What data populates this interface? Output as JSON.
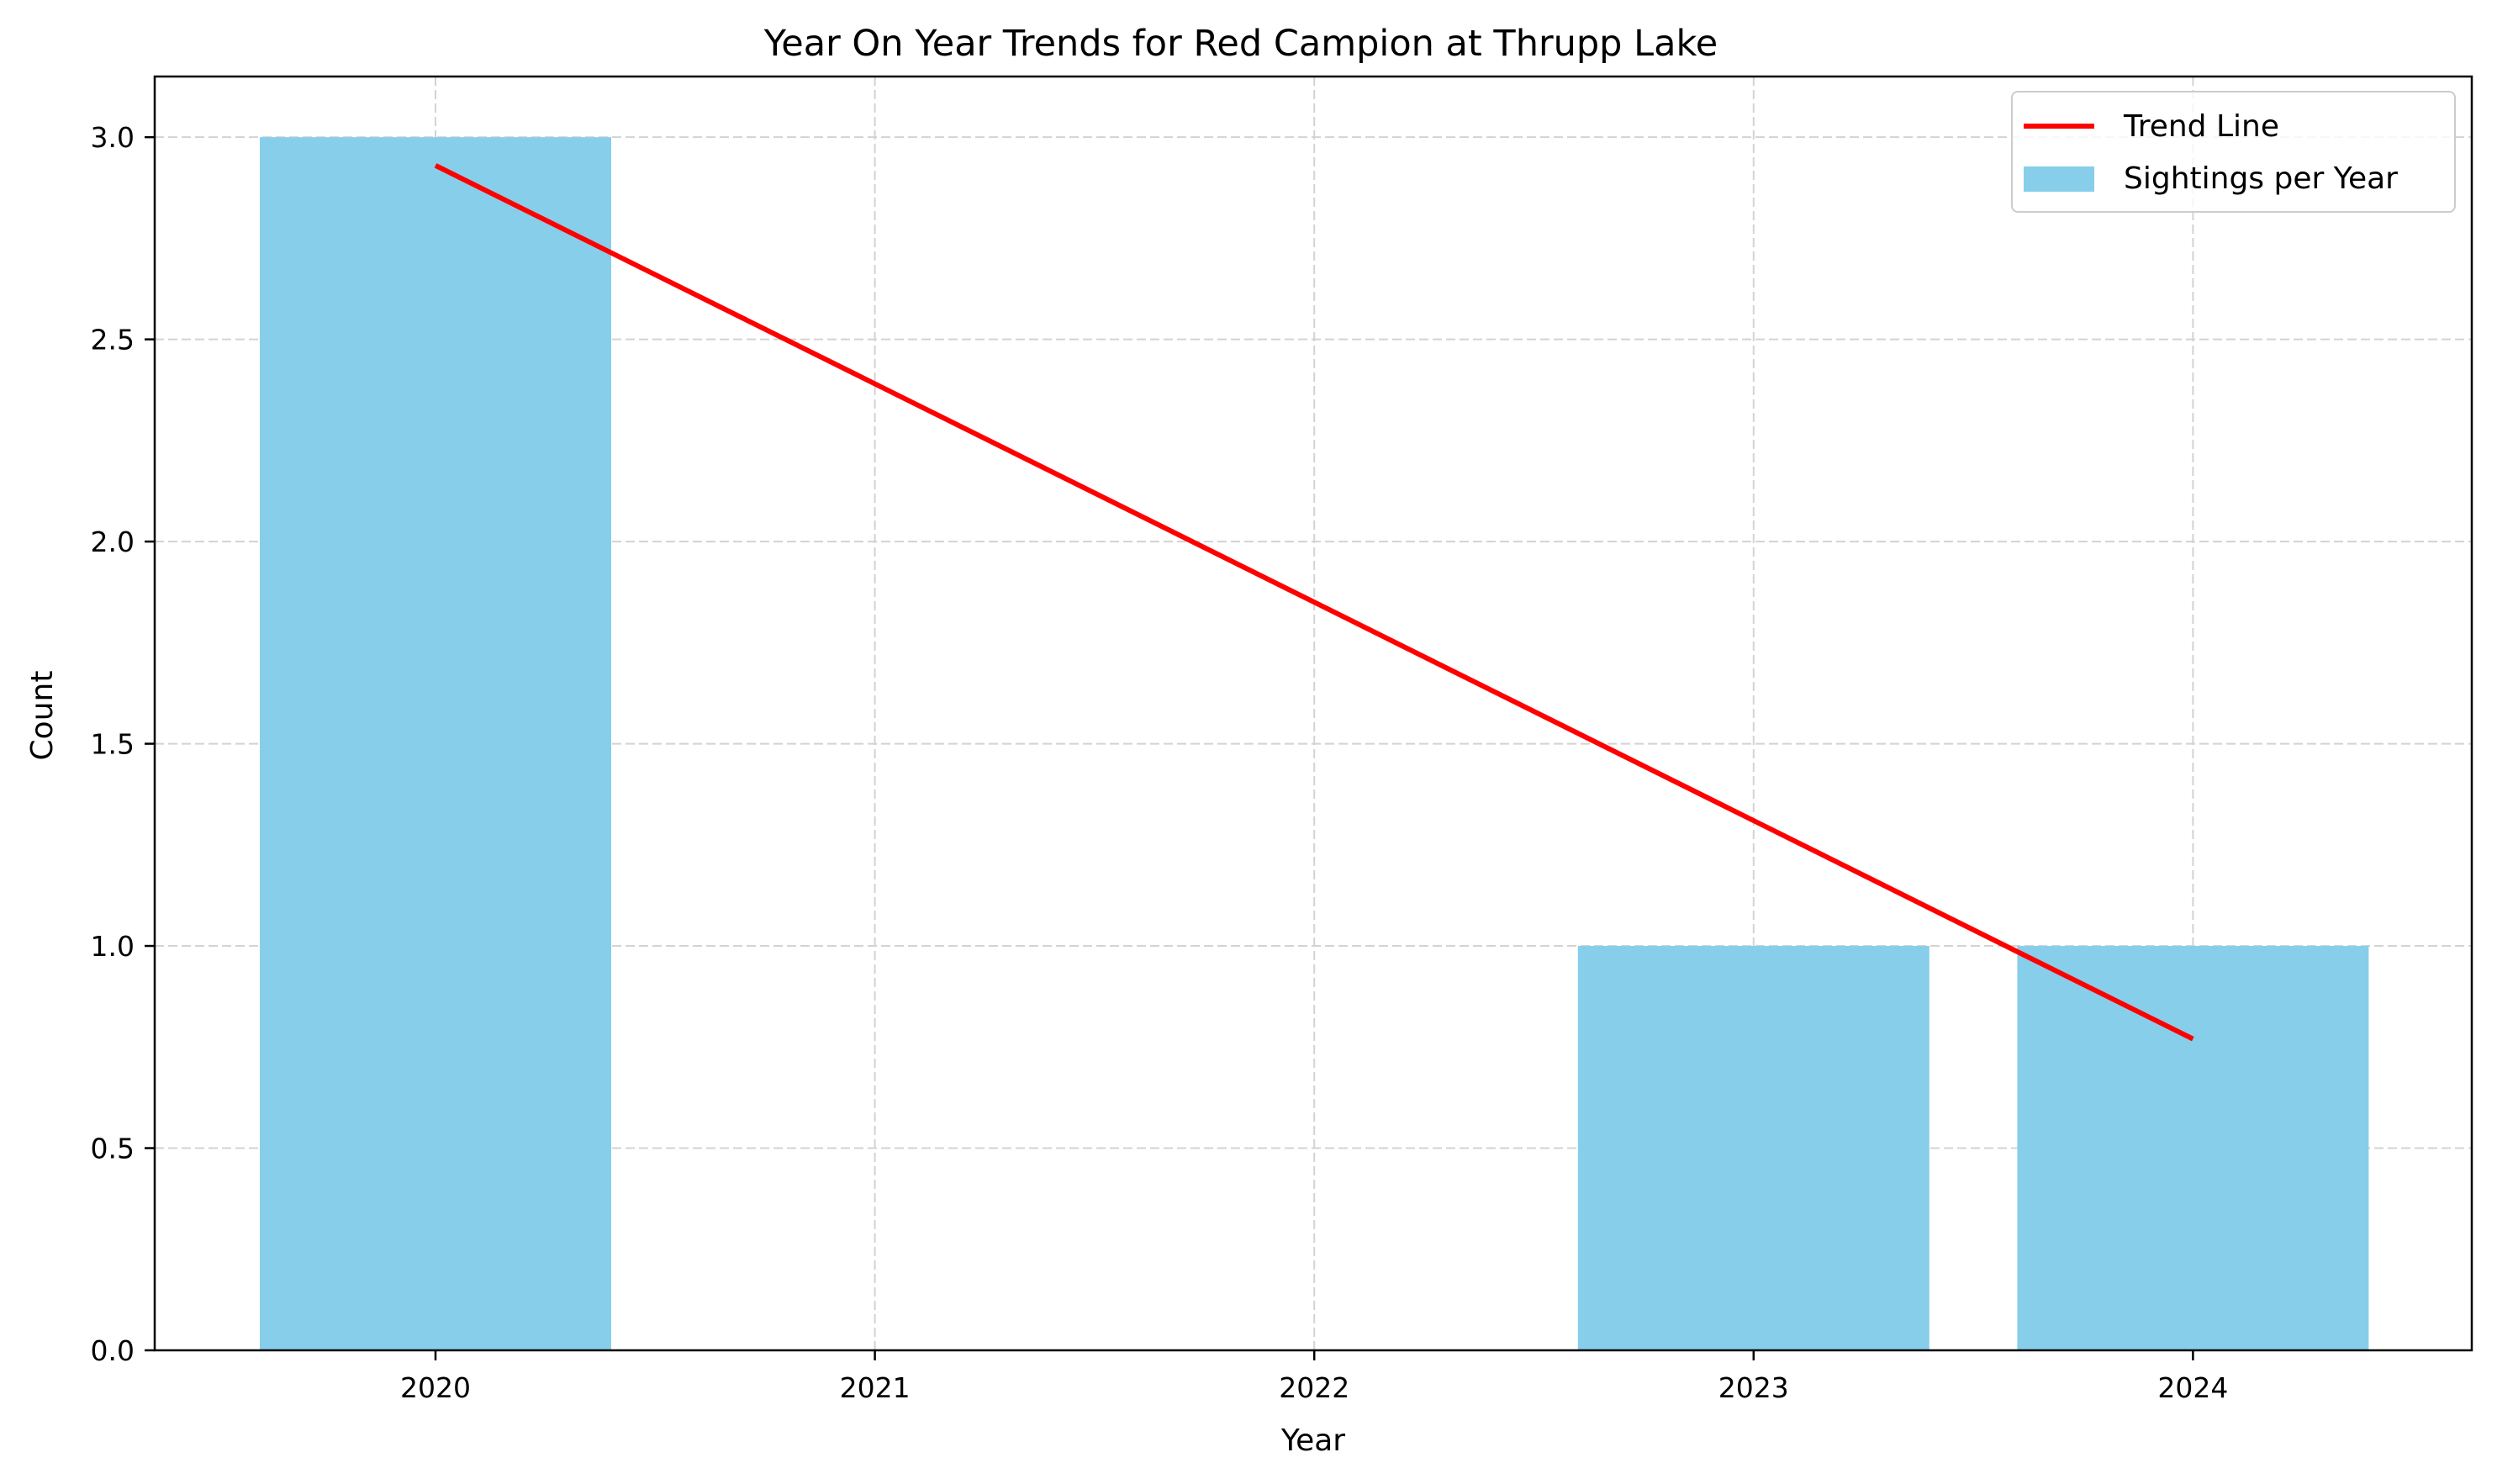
{
  "chart_data": {
    "type": "bar",
    "title": "Year On Year Trends for Red Campion at Thrupp Lake",
    "xlabel": "Year",
    "ylabel": "Count",
    "categories": [
      "2020",
      "2021",
      "2022",
      "2023",
      "2024"
    ],
    "series": [
      {
        "name": "Sightings per Year",
        "type": "bar",
        "color": "#87ceeb",
        "values": [
          3,
          0,
          0,
          1,
          1
        ]
      },
      {
        "name": "Trend Line",
        "type": "line",
        "color": "#ff0000",
        "values": [
          2.93,
          2.39,
          1.85,
          1.31,
          0.77
        ]
      }
    ],
    "ylim": [
      0,
      3.15
    ],
    "yticks": [
      "0.0",
      "0.5",
      "1.0",
      "1.5",
      "2.0",
      "2.5",
      "3.0"
    ],
    "grid": true,
    "legend_position": "top-right"
  }
}
